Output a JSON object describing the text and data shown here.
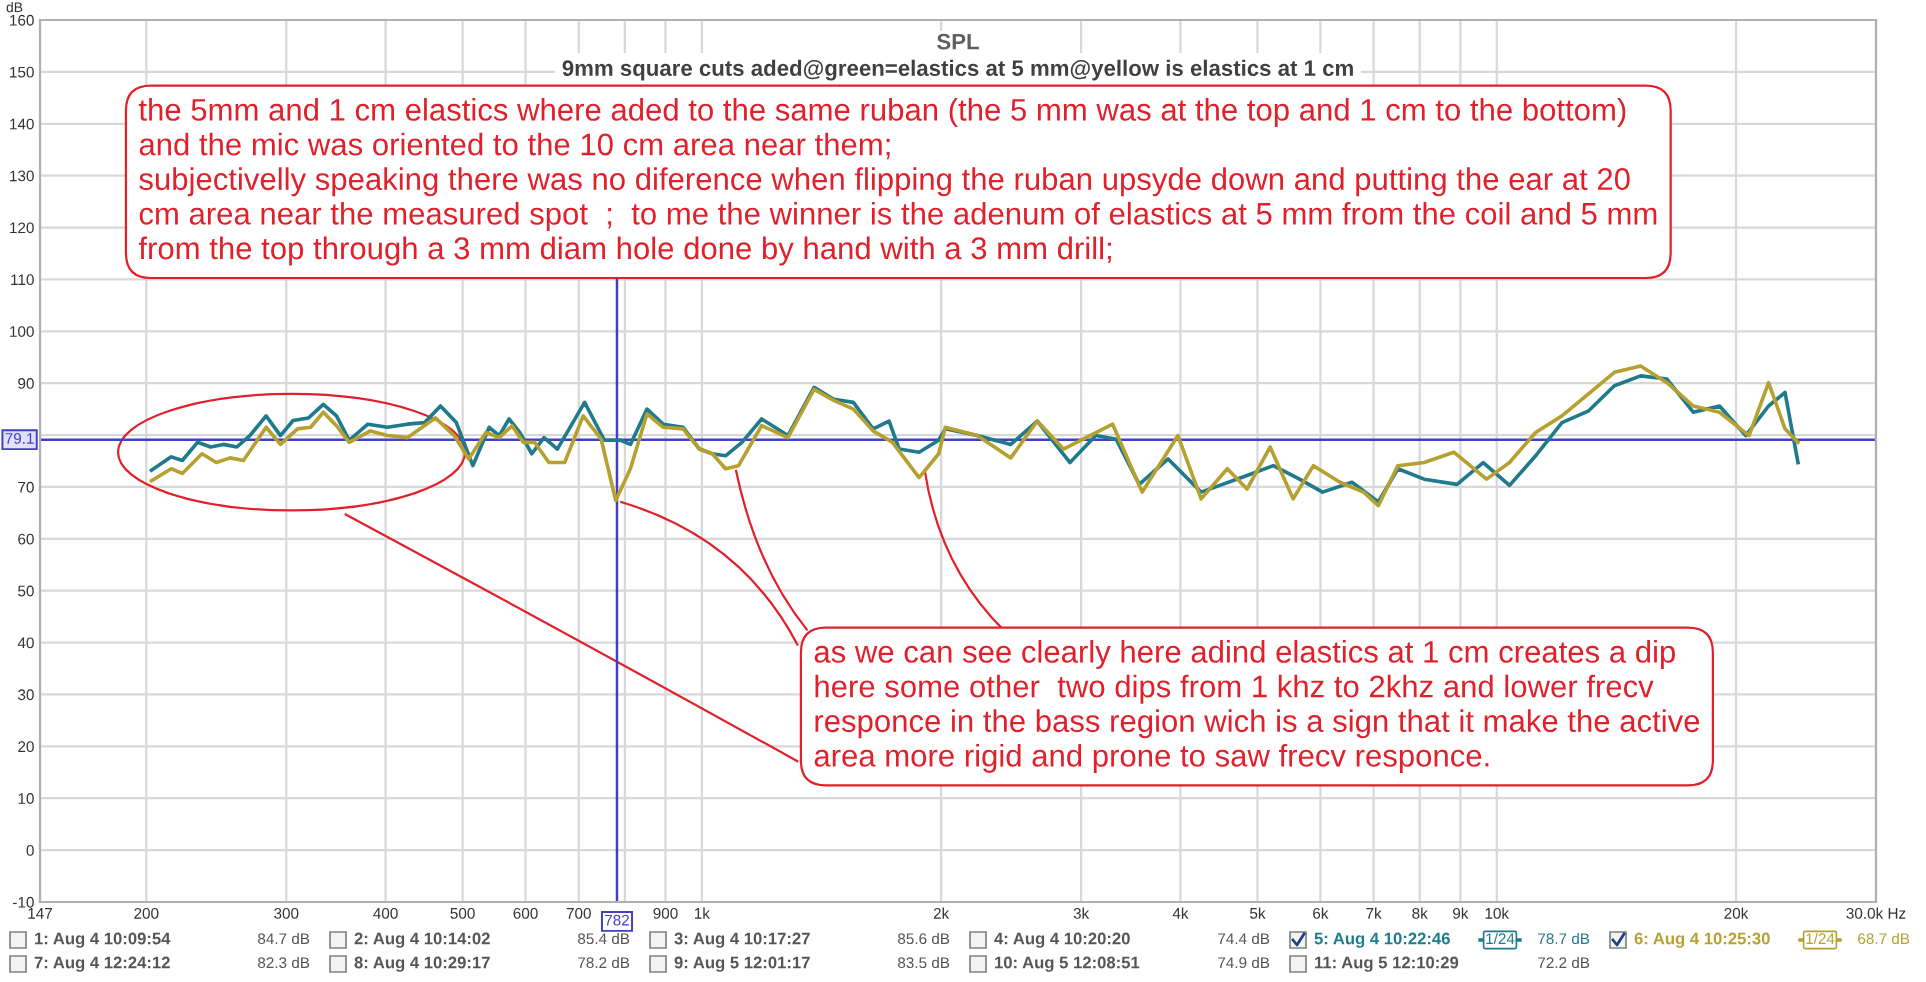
{
  "chart_data": {
    "type": "line",
    "title": "SPL",
    "subtitle": "9mm square cuts aded@green=elastics at 5 mm@yellow is elastics at 1 cm",
    "ylabel": "dB",
    "xlim": [
      147,
      30000
    ],
    "ylim": [
      -10,
      160
    ],
    "log": "x",
    "xticks": [
      147,
      200,
      300,
      400,
      500,
      600,
      700,
      {
        "value": 800,
        "label": null
      },
      900,
      {
        "value": 1000,
        "label": "1k"
      },
      {
        "value": 2000,
        "label": "2k"
      },
      {
        "value": 3000,
        "label": "3k"
      },
      {
        "value": 4000,
        "label": "4k"
      },
      {
        "value": 5000,
        "label": "5k"
      },
      {
        "value": 6000,
        "label": "6k"
      },
      {
        "value": 7000,
        "label": "7k"
      },
      {
        "value": 8000,
        "label": "8k"
      },
      {
        "value": 9000,
        "label": "9k"
      },
      {
        "value": 10000,
        "label": "10k"
      },
      {
        "value": 20000,
        "label": "20k"
      },
      {
        "value": 30000,
        "label": "30.0k Hz"
      }
    ],
    "yticks": [
      -10,
      0,
      10,
      20,
      30,
      40,
      50,
      60,
      70,
      {
        "value": 80,
        "label": null
      },
      90,
      100,
      110,
      120,
      130,
      140,
      150,
      160
    ],
    "grid": true,
    "legend": "bottom",
    "ref_lines": [
      {
        "axis": "x",
        "value": 782,
        "label": "782",
        "color": "#4040c0"
      },
      {
        "axis": "y",
        "value": 79.1,
        "label": "79.1",
        "color": "#4040c0"
      }
    ],
    "series": [
      {
        "name": "5: Aug 4 10:22:46",
        "color": "#1f7a8c",
        "x": [
          203,
          215,
          222,
          232,
          241,
          250,
          260,
          270,
          283,
          295,
          306,
          320,
          334,
          347,
          360,
          380,
          402,
          426,
          448,
          469,
          491,
          515,
          540,
          556,
          572,
          590,
          611,
          633,
          658,
          712,
          754,
          790,
          813,
          853,
          894,
          947,
          993,
          1031,
          1071,
          1123,
          1189,
          1283,
          1384,
          1465,
          1551,
          1642,
          1720,
          1771,
          1876,
          1986,
          2024,
          2220,
          2447,
          2642,
          2905,
          3130,
          3320,
          3550,
          3860,
          4247,
          4851,
          5235,
          5648,
          6037,
          6575,
          7096,
          7510,
          8103,
          8913,
          9615,
          10377,
          11191,
          12079,
          13032,
          14061,
          15171,
          16372,
          17669,
          19066,
          20570,
          21977,
          23050,
          23932
        ],
        "values": [
          73.2,
          75.8,
          75.1,
          78.6,
          77.7,
          78.2,
          77.7,
          79.9,
          83.7,
          79.9,
          82.8,
          83.3,
          85.9,
          83.7,
          79.0,
          82.1,
          81.5,
          82.1,
          82.4,
          85.6,
          82.4,
          74.1,
          81.5,
          79.9,
          83.1,
          80.5,
          76.4,
          79.5,
          77.3,
          86.3,
          79.0,
          79.0,
          78.2,
          85.0,
          82.1,
          81.5,
          77.3,
          76.4,
          76.0,
          78.6,
          83.1,
          79.9,
          89.2,
          86.9,
          86.3,
          81.2,
          82.7,
          77.3,
          76.7,
          79.0,
          81.2,
          79.9,
          78.2,
          82.7,
          74.7,
          79.9,
          79.2,
          70.5,
          75.4,
          69.0,
          72.2,
          74.1,
          71.5,
          69.0,
          70.9,
          67.1,
          73.5,
          71.5,
          70.5,
          74.7,
          70.3,
          76.0,
          82.4,
          84.6,
          89.5,
          91.4,
          90.8,
          84.4,
          85.6,
          79.9,
          85.6,
          88.2,
          74.7
        ]
      },
      {
        "name": "6: Aug 4 10:25:30",
        "color": "#b5a030",
        "x": [
          203,
          215,
          222,
          235,
          245,
          255,
          265,
          283,
          295,
          310,
          322,
          334,
          347,
          360,
          383,
          402,
          426,
          462,
          488,
          509,
          535,
          556,
          577,
          596,
          616,
          642,
          672,
          709,
          747,
          779,
          813,
          853,
          894,
          947,
          993,
          1031,
          1071,
          1112,
          1189,
          1283,
          1384,
          1465,
          1551,
          1642,
          1737,
          1876,
          1986,
          2024,
          2220,
          2447,
          2642,
          2850,
          3287,
          3580,
          3971,
          4247,
          4582,
          4851,
          5187,
          5544,
          5880,
          6350,
          6800,
          7096,
          7510,
          8103,
          8830,
          9709,
          10377,
          11191,
          12079,
          14061,
          15171,
          16372,
          17669,
          19066,
          20768,
          21977,
          23050,
          23932
        ],
        "values": [
          71.2,
          73.5,
          72.6,
          76.4,
          74.7,
          75.6,
          75.1,
          81.5,
          78.2,
          81.2,
          81.5,
          84.4,
          81.8,
          78.6,
          80.8,
          79.9,
          79.5,
          83.3,
          79.9,
          75.4,
          80.5,
          79.5,
          81.8,
          78.6,
          78.6,
          74.7,
          74.7,
          83.7,
          79.2,
          67.4,
          73.5,
          84.1,
          81.5,
          81.2,
          77.3,
          76.4,
          73.5,
          74.1,
          81.8,
          79.5,
          88.8,
          86.7,
          85.0,
          80.8,
          78.6,
          71.8,
          76.4,
          81.5,
          79.9,
          75.6,
          82.7,
          77.3,
          82.1,
          69.0,
          79.9,
          67.7,
          73.5,
          69.6,
          77.7,
          67.7,
          74.1,
          70.9,
          69.0,
          66.4,
          74.1,
          74.7,
          76.7,
          71.5,
          74.7,
          80.5,
          83.7,
          92.1,
          93.3,
          90.1,
          85.6,
          84.4,
          79.9,
          90.1,
          81.2,
          78.6
        ]
      }
    ],
    "annotations": [
      "the 5mm and 1 cm elastics where aded to the same ruban (the 5 mm was at the top and 1 cm to the bottom)\nand the mic was oriented to the 10 cm area near them;\nsubjectivelly speaking there was no diference when flipping the ruban upsyde down and putting the ear at 20\ncm area near the measured spot  ;  to me the winner is the adenum of elastics at 5 mm from the coil and 5 mm\nfrom the top through a 3 mm diam hole done by hand with a 3 mm drill;",
      {
        "text": "as we can see clearly here adind elastics at 1 cm creates a dip\nhere some other  two dips from 1 khz to 2khz and lower frecv\nresponce in the bass region wich is a sign that it make the active\narea more rigid and prone to saw frecv responce.",
        "x": 779,
        "y": 67.4
      },
      "1: Aug 4 10:09:54",
      "2: Aug 4 10:14:02",
      "3: Aug 4 10:17:27",
      "4: Aug 4 10:20:20",
      "7: Aug 4 12:24:12",
      "8: Aug 4 10:29:17",
      "9: Aug 5 12:01:17",
      "10: Aug 5 12:08:51",
      "11: Aug 5 12:10:29",
      "84.7 dB",
      "85.4 dB",
      "85.6 dB",
      "74.4 dB",
      "78.7 dB",
      "68.7 dB",
      "82.3 dB",
      "78.2 dB",
      "83.5 dB",
      "74.9 dB",
      "72.2 dB",
      "1/24",
      "1/24"
    ]
  }
}
